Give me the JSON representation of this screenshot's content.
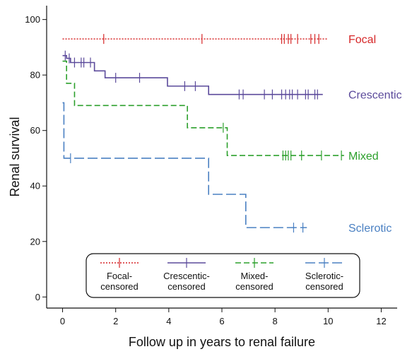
{
  "chart_data": {
    "type": "line",
    "subtype": "step",
    "xlabel": "Follow up in years to renal failure",
    "ylabel": "Renal survival",
    "xlim": [
      -0.6,
      12.6
    ],
    "ylim": [
      -4,
      105
    ],
    "xticks": [
      0,
      2,
      4,
      6,
      8,
      10,
      12
    ],
    "yticks": [
      0,
      20,
      40,
      60,
      80,
      100
    ],
    "grid": false,
    "legend_placement": "bottom-center",
    "series": [
      {
        "key": "focal",
        "name": "Focal",
        "legend_label": [
          "Focal-",
          "censored"
        ],
        "color": "#d62728",
        "dash": "2,2",
        "steps": [
          [
            0,
            93
          ],
          [
            10,
            93
          ]
        ],
        "censored": [
          [
            1.55,
            93
          ],
          [
            5.25,
            93
          ],
          [
            8.25,
            93
          ],
          [
            8.35,
            93
          ],
          [
            8.5,
            93
          ],
          [
            8.6,
            93
          ],
          [
            8.85,
            93
          ],
          [
            9.35,
            93
          ],
          [
            9.5,
            93
          ],
          [
            9.65,
            93
          ]
        ]
      },
      {
        "key": "crescentic",
        "name": "Crescentic",
        "legend_label": [
          "Crescentic-",
          "censored"
        ],
        "color": "#5b4a9b",
        "dash": "",
        "steps": [
          [
            0,
            87
          ],
          [
            0.15,
            86
          ],
          [
            0.3,
            84.5
          ],
          [
            1.2,
            81.5
          ],
          [
            1.6,
            79
          ],
          [
            3.95,
            76
          ],
          [
            5.5,
            73
          ],
          [
            9.8,
            73
          ]
        ],
        "censored": [
          [
            0.1,
            87
          ],
          [
            0.25,
            86
          ],
          [
            0.45,
            84.5
          ],
          [
            0.7,
            84.5
          ],
          [
            0.8,
            84.5
          ],
          [
            1.05,
            84.5
          ],
          [
            2.0,
            79
          ],
          [
            2.9,
            79
          ],
          [
            4.6,
            76
          ],
          [
            5.0,
            76
          ],
          [
            6.65,
            73
          ],
          [
            6.8,
            73
          ],
          [
            7.6,
            73
          ],
          [
            7.9,
            73
          ],
          [
            8.25,
            73
          ],
          [
            8.4,
            73
          ],
          [
            8.55,
            73
          ],
          [
            8.65,
            73
          ],
          [
            8.85,
            73
          ],
          [
            9.15,
            73
          ],
          [
            9.25,
            73
          ],
          [
            9.5,
            73
          ],
          [
            9.6,
            73
          ]
        ]
      },
      {
        "key": "mixed",
        "name": "Mixed",
        "legend_label": [
          "Mixed-",
          "censored"
        ],
        "color": "#2ca02c",
        "dash": "8,4",
        "steps": [
          [
            0,
            85
          ],
          [
            0.15,
            77
          ],
          [
            0.45,
            69
          ],
          [
            4.7,
            61
          ],
          [
            6.2,
            51
          ],
          [
            10.6,
            51
          ]
        ],
        "censored": [
          [
            6.05,
            61
          ],
          [
            8.3,
            51
          ],
          [
            8.4,
            51
          ],
          [
            8.5,
            51
          ],
          [
            8.6,
            51
          ],
          [
            9.0,
            51
          ],
          [
            9.75,
            51
          ],
          [
            10.5,
            51
          ]
        ]
      },
      {
        "key": "sclerotic",
        "name": "Sclerotic",
        "legend_label": [
          "Sclerotic-",
          "censored"
        ],
        "color": "#4a80c2",
        "dash": "14,5",
        "steps": [
          [
            0,
            70
          ],
          [
            0.05,
            50
          ],
          [
            5.5,
            37
          ],
          [
            6.9,
            25
          ],
          [
            9.2,
            25
          ]
        ],
        "censored": [
          [
            0.3,
            50
          ],
          [
            8.7,
            25
          ],
          [
            9.05,
            25
          ]
        ]
      }
    ]
  }
}
